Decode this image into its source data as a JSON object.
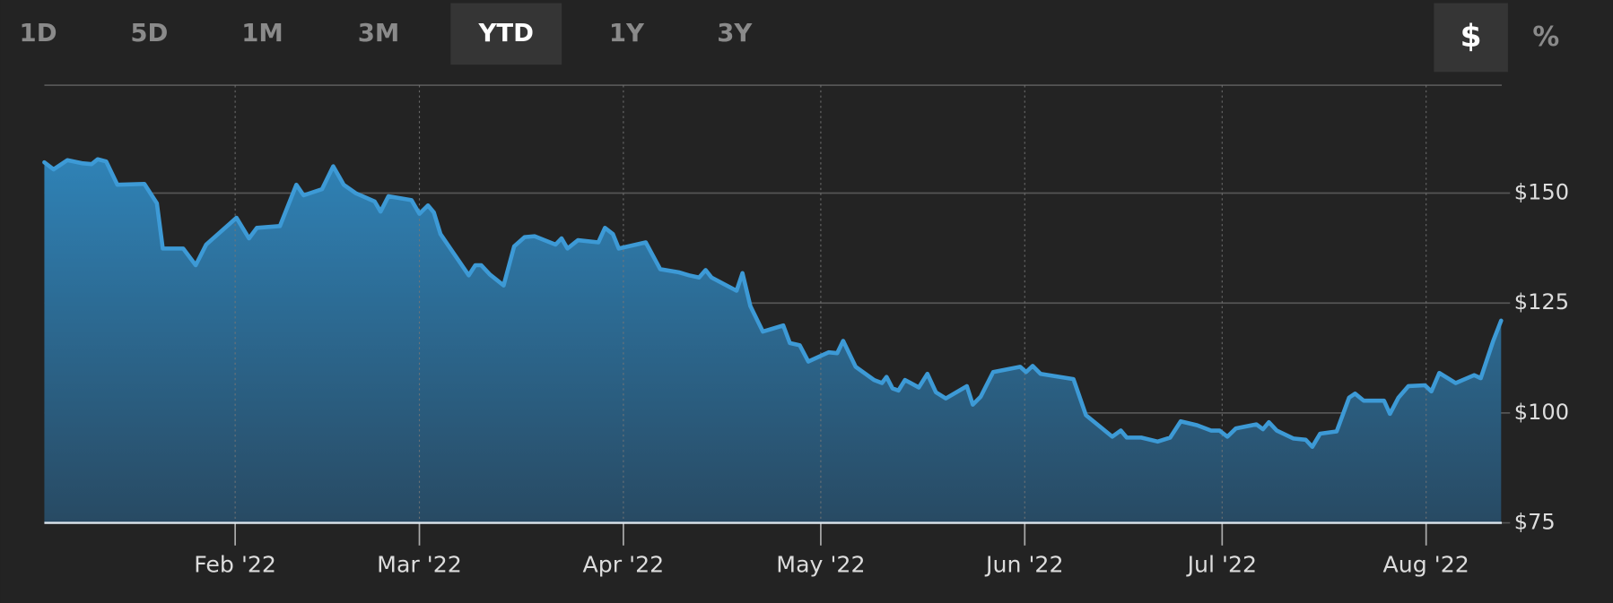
{
  "chart_data": {
    "type": "area",
    "range_buttons": [
      "1D",
      "5D",
      "1M",
      "3M",
      "YTD",
      "1Y",
      "3Y"
    ],
    "selected_range": 4,
    "unit_buttons": [
      "$",
      "%"
    ],
    "selected_unit": 0,
    "color": "#3d9ad6",
    "grid": true,
    "xlim": [
      3,
      224.5
    ],
    "xticks": [
      {
        "value": 32,
        "label": "Feb '22"
      },
      {
        "value": 60,
        "label": "Mar '22"
      },
      {
        "value": 91,
        "label": "Apr '22"
      },
      {
        "value": 121,
        "label": "May '22"
      },
      {
        "value": 152,
        "label": "Jun '22"
      },
      {
        "value": 182,
        "label": "Jul '22"
      },
      {
        "value": 213,
        "label": "Aug '22"
      }
    ],
    "ylim": [
      75,
      175
    ],
    "yticks": [
      {
        "value": 75,
        "label": "$75"
      },
      {
        "value": 100,
        "label": "$100"
      },
      {
        "value": 125,
        "label": "$125"
      },
      {
        "value": 150,
        "label": "$150"
      }
    ],
    "x": [
      3,
      4.4,
      6.5,
      8.7,
      10.2,
      11.1,
      12.4,
      14.1,
      18.2,
      20.1,
      21.0,
      24.1,
      26.0,
      27.6,
      32.2,
      34.1,
      35.3,
      38.8,
      41.3,
      42.4,
      45.2,
      46.9,
      48.5,
      50.3,
      53.2,
      54.1,
      55.3,
      58.8,
      60.0,
      61.3,
      62.2,
      63.2,
      67.5,
      68.5,
      69.4,
      70.7,
      72.8,
      74.4,
      76.0,
      77.5,
      80.7,
      81.6,
      82.5,
      84.1,
      87.2,
      88.2,
      89.4,
      90.3,
      94.4,
      96.6,
      99.4,
      101.0,
      102.5,
      103.5,
      104.4,
      108.2,
      109.1,
      110.3,
      112.2,
      115.3,
      116.3,
      117.8,
      119.1,
      122.2,
      123.5,
      124.4,
      126.3,
      129.1,
      130.3,
      131.0,
      131.9,
      132.8,
      133.8,
      135.9,
      137.2,
      138.5,
      140.0,
      143.2,
      144.1,
      145.3,
      147.2,
      151.3,
      152.2,
      153.2,
      154.4,
      159.4,
      161.3,
      165.3,
      166.6,
      167.5,
      169.7,
      172.2,
      174.1,
      175.7,
      178.2,
      180.3,
      181.6,
      182.8,
      184.1,
      187.2,
      188.2,
      189.1,
      190.3,
      192.8,
      194.7,
      195.7,
      196.9,
      199.4,
      201.3,
      202.2,
      203.5,
      206.6,
      207.5,
      208.8,
      210.3,
      212.8,
      213.8,
      215.0,
      217.5,
      220.3,
      221.3,
      223.2,
      224.4
    ],
    "values": [
      157.0,
      155.4,
      157.5,
      156.8,
      156.6,
      157.7,
      157.2,
      151.9,
      152.1,
      147.7,
      137.4,
      137.4,
      133.6,
      138.3,
      144.4,
      139.7,
      142.1,
      142.5,
      151.9,
      149.5,
      150.9,
      156.1,
      151.9,
      150.0,
      148.1,
      145.8,
      149.3,
      148.4,
      145.3,
      147.2,
      145.6,
      140.7,
      131.3,
      133.6,
      133.6,
      131.5,
      129.0,
      137.9,
      140.0,
      140.2,
      138.3,
      139.7,
      137.4,
      139.3,
      138.8,
      142.1,
      140.7,
      137.4,
      138.8,
      132.7,
      132.0,
      131.3,
      130.8,
      132.5,
      130.8,
      127.8,
      131.8,
      124.3,
      118.5,
      119.9,
      115.9,
      115.4,
      111.7,
      113.8,
      113.6,
      116.4,
      110.5,
      107.5,
      106.8,
      108.2,
      105.6,
      105.1,
      107.5,
      105.8,
      108.9,
      104.7,
      103.3,
      106.1,
      101.9,
      103.7,
      109.3,
      110.5,
      109.3,
      110.7,
      108.9,
      107.7,
      99.5,
      94.6,
      96.0,
      94.4,
      94.4,
      93.5,
      94.4,
      98.1,
      97.2,
      96.0,
      96.0,
      94.6,
      96.5,
      97.4,
      96.3,
      97.9,
      96.0,
      94.2,
      93.9,
      92.3,
      95.3,
      95.8,
      103.5,
      104.4,
      102.8,
      102.8,
      99.8,
      103.5,
      106.1,
      106.3,
      104.9,
      109.1,
      106.8,
      108.6,
      107.9,
      116.4,
      121.0
    ]
  }
}
